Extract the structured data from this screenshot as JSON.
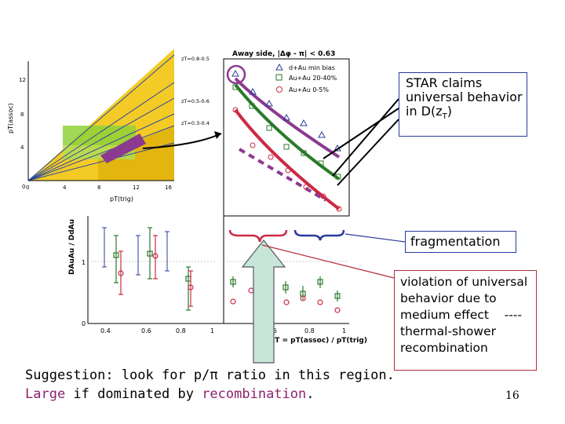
{
  "callouts": {
    "star_claim": {
      "line1": "STAR claims",
      "line2": "universal behavior",
      "line3_pre": "in D(z",
      "line3_sub": "T",
      "line3_post": ")"
    },
    "fragmentation": "fragmentation",
    "violation": {
      "line1": "violation of universal",
      "line2": "behavior due to",
      "line3": "medium effect    ----",
      "line4": "thermal-shower",
      "line5": "recombination"
    }
  },
  "suggestion": {
    "line1": "Suggestion: look for p/π ratio in this region.",
    "line2_w1": "Large",
    "line2_w2": " if dominated by ",
    "line2_w3": "recombination",
    "line2_w4": "."
  },
  "page_number": "16",
  "left_plot": {
    "ylabel": "pT(assoc)",
    "xlabel": "pT(trig)",
    "y_ticks": [
      "0",
      "4",
      "8",
      "12"
    ],
    "x_ticks": [
      "0",
      "4",
      "8",
      "12",
      "16"
    ],
    "band_labels": [
      "zT=0.8-0.5",
      "zT=0.5-0.6",
      "zT=0.3-0.4"
    ]
  },
  "right_plot": {
    "title": "Away side, |Δφ - π| < 0.63",
    "legend": [
      "d+Au min bias",
      "Au+Au 20-40%",
      "Au+Au 0-5%"
    ],
    "xlabel": "zT = pT(assoc) / pT(trig)",
    "x_ticks": [
      "0.4",
      "0.6",
      "0.8",
      "1"
    ]
  },
  "ratio_plot": {
    "ylabel": "DAuAu / DdAu",
    "y_ticks": [
      "0",
      "1"
    ],
    "x_ticks": [
      "0.4",
      "0.6",
      "0.8",
      "1"
    ]
  },
  "colors": {
    "accent": "#8c2270",
    "callout_blue": "#2a3b9a",
    "callout_red": "#b0303a",
    "purple_curve": "#8b3a8f",
    "green_curve": "#2a7a2a",
    "red_curve": "#cc2a45"
  }
}
